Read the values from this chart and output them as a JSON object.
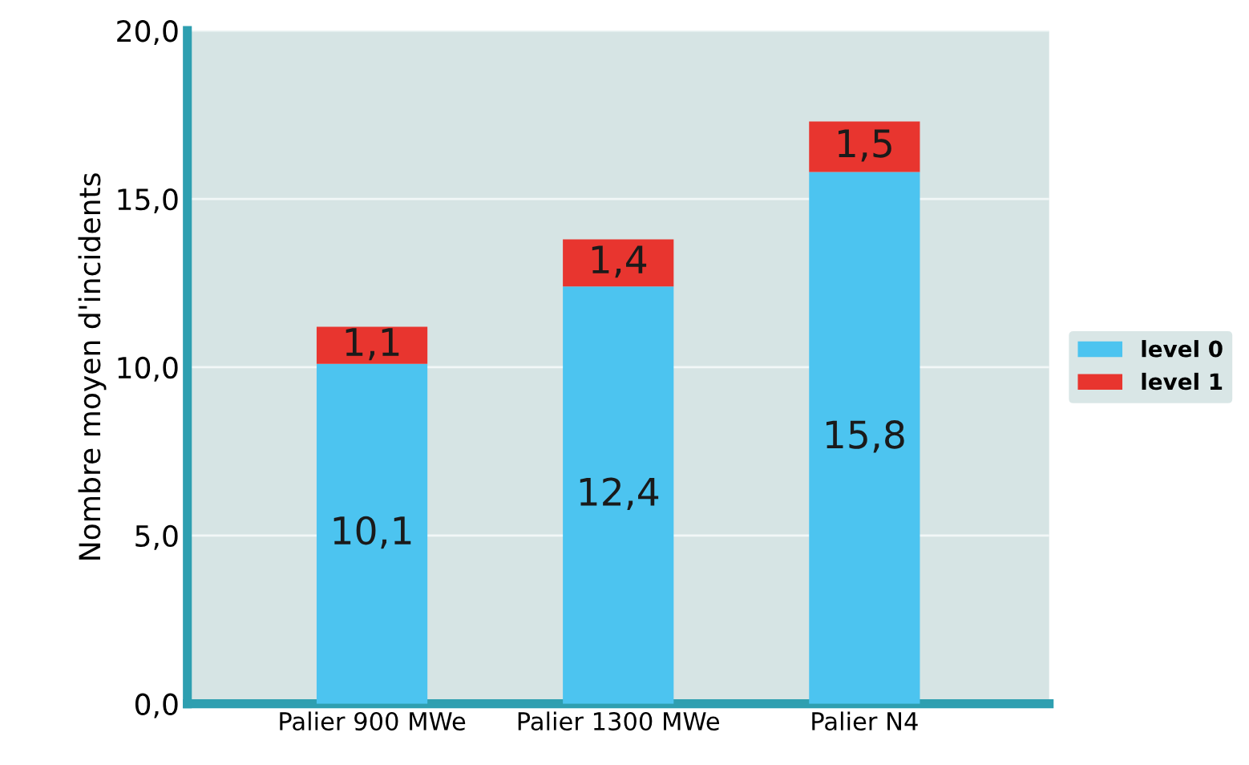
{
  "chart_data": {
    "type": "bar",
    "stacked": true,
    "ylabel": "Nombre moyen d'incidents",
    "categories": [
      "Palier 900 MWe",
      "Palier 1300 MWe",
      "Palier N4"
    ],
    "series": [
      {
        "name": "level 0",
        "color": "#4cc4f0",
        "values": [
          10.1,
          12.4,
          15.8
        ],
        "value_labels": [
          "10,1",
          "12,4",
          "15,8"
        ]
      },
      {
        "name": "level 1",
        "color": "#e8352f",
        "values": [
          1.1,
          1.4,
          1.5
        ],
        "value_labels": [
          "1,1",
          "1,4",
          "1,5"
        ]
      }
    ],
    "ylim": [
      0,
      20
    ],
    "yticks": [
      {
        "value": 0,
        "label": "0,0"
      },
      {
        "value": 5,
        "label": "5,0"
      },
      {
        "value": 10,
        "label": "10,0"
      },
      {
        "value": 15,
        "label": "15,0"
      },
      {
        "value": 20,
        "label": "20,0"
      }
    ],
    "grid": "y",
    "legend": "right"
  }
}
